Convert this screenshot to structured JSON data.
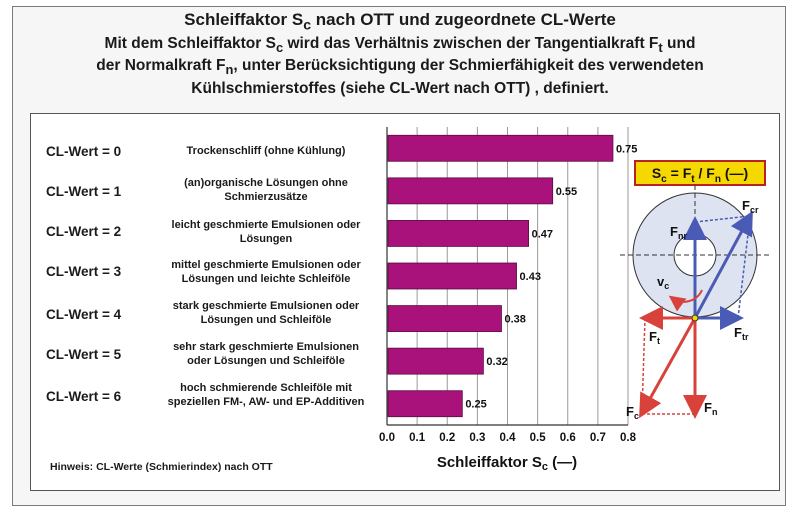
{
  "title": {
    "line1_main": "Schleiffaktor S",
    "line1_sub": "c",
    "line1_rest": " nach OTT und zugeordnete CL-Werte",
    "line2": "Mit dem Schleiffaktor S",
    "line2_sub": "c",
    "line2_rest": " wird das Verhältnis zwischen der Tangentialkraft F",
    "line2_sub2": "t",
    "line2_end": " und",
    "line3": "der Normalkraft F",
    "line3_sub": "n",
    "line3_rest": ", unter Berücksichtigung der Schmierfähigkeit des verwendeten",
    "line4": "Kühlschmierstoffes (siehe CL-Wert nach OTT) , definiert."
  },
  "hint": "Hinweis: CL-Werte (Schmierindex) nach OTT",
  "formula": {
    "s": "S",
    "s_sub": "c",
    "eq": " = F",
    "f1_sub": "t",
    "div": " / F",
    "f2_sub": "n",
    "tail": " (—)"
  },
  "diagram_labels": {
    "fnr": "F",
    "fnr_sub": "nr",
    "fcr": "F",
    "fcr_sub": "cr",
    "vc": "v",
    "vc_sub": "c",
    "ft": "F",
    "ft_sub": "t",
    "ftr": "F",
    "ftr_sub": "tr",
    "fc": "F",
    "fc_sub": "c",
    "fn": "F",
    "fn_sub": "n"
  },
  "colors": {
    "bar": "#a8127a",
    "red_force": "#d9413b",
    "blue_force": "#4a5bb5",
    "formula_bg": "#f5d800",
    "formula_border": "#b52323"
  },
  "chart_data": {
    "type": "bar",
    "orientation": "horizontal",
    "categories": [
      "CL-Wert = 0",
      "CL-Wert = 1",
      "CL-Wert = 2",
      "CL-Wert = 3",
      "CL-Wert = 4",
      "CL-Wert = 5",
      "CL-Wert = 6"
    ],
    "descriptions": [
      [
        "Trockenschliff (ohne Kühlung)"
      ],
      [
        "(an)organische Lösungen ohne",
        "Schmierzusätze"
      ],
      [
        "leicht geschmierte Emulsionen oder",
        "Lösungen"
      ],
      [
        "mittel geschmierte Emulsionen oder",
        "Lösungen und leichte Schleiföle"
      ],
      [
        "stark geschmierte Emulsionen oder",
        "Lösungen und Schleiföle"
      ],
      [
        "sehr stark geschmierte Emulsionen",
        "oder Lösungen und Schleiföle"
      ],
      [
        "hoch schmierende Schleiföle mit",
        "speziellen FM-, AW- und EP-Additiven"
      ]
    ],
    "values": [
      0.75,
      0.55,
      0.47,
      0.43,
      0.38,
      0.32,
      0.25
    ],
    "value_labels": [
      "0.75",
      "0.55",
      "0.47",
      "0.43",
      "0.38",
      "0.32",
      "0.25"
    ],
    "xlabel": "Schleiffaktor S",
    "xlabel_sub": "c",
    "xlabel_unit": " (—)",
    "xlim": [
      0,
      0.8
    ],
    "xticks": [
      "0.0",
      "0.1",
      "0.2",
      "0.3",
      "0.4",
      "0.5",
      "0.6",
      "0.7",
      "0.8"
    ],
    "grid": true
  }
}
